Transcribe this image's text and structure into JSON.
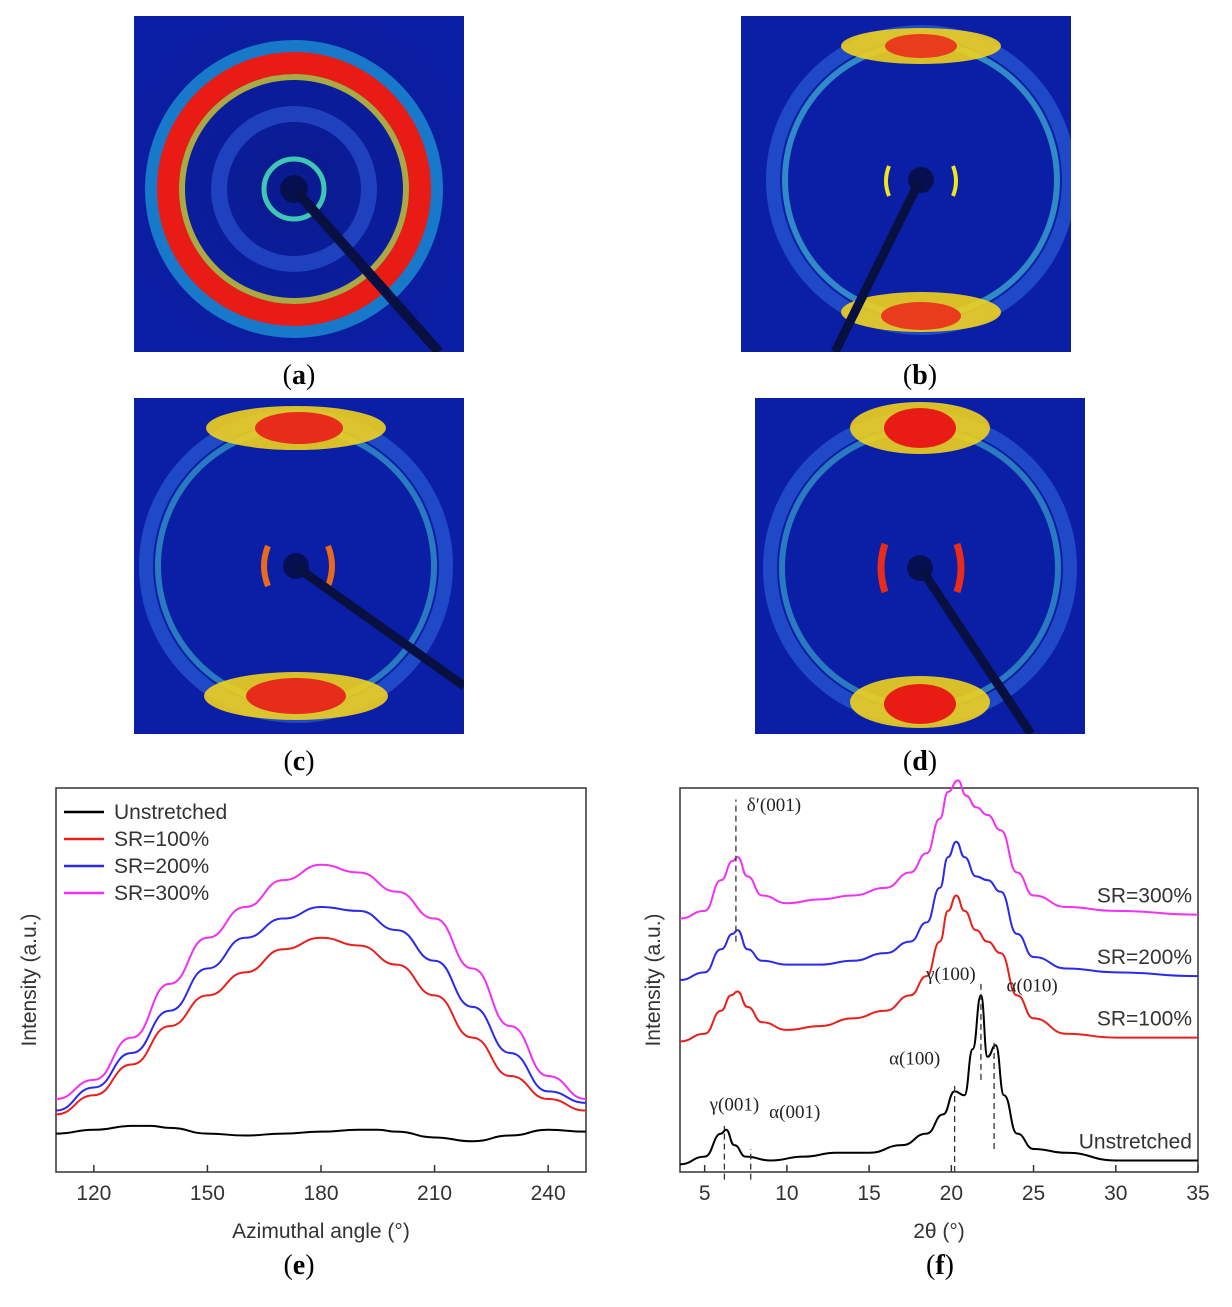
{
  "panels": [
    {
      "id": "a",
      "caption_letter": "a",
      "pattern": "isotropic-ring"
    },
    {
      "id": "b",
      "caption_letter": "b",
      "pattern": "oriented-arcs-weak"
    },
    {
      "id": "c",
      "caption_letter": "c",
      "pattern": "oriented-arcs-medium"
    },
    {
      "id": "d",
      "caption_letter": "d",
      "pattern": "oriented-arcs-strong"
    }
  ],
  "captions": {
    "e": "e",
    "f": "f"
  },
  "colors": {
    "unstretched": "#000000",
    "sr100": "#e8201c",
    "sr200": "#2a2ae8",
    "sr300": "#f032f0",
    "detector_bg": "#0b1fa6"
  },
  "chart_data": [
    {
      "id": "e",
      "type": "line",
      "xlabel": "Azimuthal angle (°)",
      "ylabel": "Intensity (a.u.)",
      "xlim": [
        110,
        250
      ],
      "ylim": [
        0,
        1
      ],
      "xticks": [
        120,
        150,
        180,
        210,
        240
      ],
      "legend": [
        "Unstretched",
        "SR=100%",
        "SR=200%",
        "SR=300%"
      ],
      "legend_position": "top-left",
      "series": [
        {
          "name": "Unstretched",
          "color": "#000000",
          "x": [
            110,
            120,
            130,
            135,
            140,
            150,
            160,
            170,
            180,
            190,
            195,
            200,
            210,
            220,
            230,
            240,
            250
          ],
          "y": [
            0.1,
            0.11,
            0.12,
            0.12,
            0.115,
            0.1,
            0.095,
            0.1,
            0.105,
            0.11,
            0.11,
            0.105,
            0.09,
            0.08,
            0.095,
            0.11,
            0.105
          ]
        },
        {
          "name": "SR=100%",
          "color": "#e8201c",
          "x": [
            110,
            120,
            130,
            140,
            150,
            160,
            170,
            180,
            190,
            200,
            210,
            220,
            230,
            240,
            250
          ],
          "y": [
            0.15,
            0.2,
            0.28,
            0.38,
            0.46,
            0.52,
            0.58,
            0.61,
            0.59,
            0.54,
            0.46,
            0.35,
            0.25,
            0.19,
            0.16
          ]
        },
        {
          "name": "SR=200%",
          "color": "#2a2ae8",
          "x": [
            110,
            120,
            130,
            140,
            150,
            160,
            170,
            180,
            190,
            200,
            210,
            220,
            230,
            240,
            250
          ],
          "y": [
            0.16,
            0.22,
            0.31,
            0.42,
            0.53,
            0.61,
            0.66,
            0.69,
            0.68,
            0.63,
            0.55,
            0.43,
            0.31,
            0.21,
            0.18
          ]
        },
        {
          "name": "SR=300%",
          "color": "#f032f0",
          "x": [
            110,
            120,
            130,
            140,
            150,
            160,
            170,
            180,
            190,
            200,
            210,
            220,
            230,
            240,
            250
          ],
          "y": [
            0.19,
            0.24,
            0.35,
            0.49,
            0.61,
            0.69,
            0.76,
            0.8,
            0.78,
            0.73,
            0.66,
            0.53,
            0.38,
            0.25,
            0.19
          ]
        }
      ]
    },
    {
      "id": "f",
      "type": "line",
      "xlabel": "2θ (°)",
      "ylabel": "Intensity (a.u.)",
      "xlim": [
        3.5,
        35
      ],
      "ylim": [
        0,
        1
      ],
      "xticks": [
        5,
        10,
        15,
        20,
        25,
        30,
        35
      ],
      "series": [
        {
          "name": "Unstretched",
          "color": "#000000",
          "label": "Unstretched",
          "x": [
            3.5,
            5,
            6,
            6.3,
            6.8,
            7.5,
            9,
            11,
            13,
            15,
            17,
            18.5,
            19.5,
            20.2,
            20.8,
            21.3,
            21.8,
            22.2,
            22.7,
            23.2,
            24,
            25,
            27,
            30,
            35
          ],
          "y": [
            0.02,
            0.04,
            0.1,
            0.11,
            0.07,
            0.04,
            0.03,
            0.04,
            0.05,
            0.05,
            0.07,
            0.1,
            0.15,
            0.21,
            0.2,
            0.32,
            0.46,
            0.3,
            0.33,
            0.2,
            0.1,
            0.06,
            0.05,
            0.03,
            0.03
          ]
        },
        {
          "name": "SR=100%",
          "color": "#e8201c",
          "label": "SR=100%",
          "x": [
            3.5,
            5,
            6,
            6.6,
            7,
            7.6,
            8.5,
            10,
            12,
            14,
            16,
            17.5,
            18.5,
            19.3,
            19.8,
            20.3,
            20.8,
            21.5,
            22.2,
            23,
            24,
            25,
            27,
            30,
            35
          ],
          "y": [
            0.34,
            0.36,
            0.42,
            0.46,
            0.47,
            0.43,
            0.39,
            0.37,
            0.38,
            0.4,
            0.42,
            0.46,
            0.51,
            0.6,
            0.68,
            0.72,
            0.68,
            0.63,
            0.6,
            0.57,
            0.46,
            0.4,
            0.36,
            0.35,
            0.35
          ]
        },
        {
          "name": "SR=200%",
          "color": "#2a2ae8",
          "label": "SR=200%",
          "x": [
            3.5,
            5,
            6,
            6.7,
            7,
            7.6,
            8.5,
            10,
            12,
            14,
            16,
            17.5,
            18.5,
            19.3,
            19.8,
            20.3,
            20.8,
            21.5,
            22.2,
            23,
            24,
            25,
            27,
            30,
            35
          ],
          "y": [
            0.5,
            0.52,
            0.58,
            0.62,
            0.63,
            0.58,
            0.55,
            0.54,
            0.54,
            0.55,
            0.57,
            0.6,
            0.65,
            0.74,
            0.82,
            0.86,
            0.82,
            0.77,
            0.76,
            0.73,
            0.62,
            0.56,
            0.53,
            0.52,
            0.51
          ]
        },
        {
          "name": "SR=300%",
          "color": "#f032f0",
          "label": "SR=300%",
          "x": [
            3.5,
            5,
            6,
            6.7,
            7,
            7.6,
            8.5,
            10,
            12,
            14,
            16,
            17.5,
            18.5,
            19.3,
            19.8,
            20.4,
            20.9,
            21.5,
            22.2,
            23,
            24,
            25,
            27,
            30,
            35
          ],
          "y": [
            0.66,
            0.68,
            0.76,
            0.81,
            0.82,
            0.77,
            0.72,
            0.7,
            0.71,
            0.72,
            0.74,
            0.78,
            0.83,
            0.92,
            0.99,
            1.02,
            0.98,
            0.95,
            0.93,
            0.89,
            0.78,
            0.72,
            0.69,
            0.68,
            0.67
          ]
        }
      ],
      "annotations": [
        {
          "text": "δ′(001)",
          "x": 6.9
        },
        {
          "text": "γ(001)",
          "x": 6.2
        },
        {
          "text": "α(001)",
          "x": 7.8
        },
        {
          "text": "α(100)",
          "x": 20.2
        },
        {
          "text": "γ(100)",
          "x": 21.8
        },
        {
          "text": "α(010)",
          "x": 22.6
        }
      ]
    }
  ]
}
